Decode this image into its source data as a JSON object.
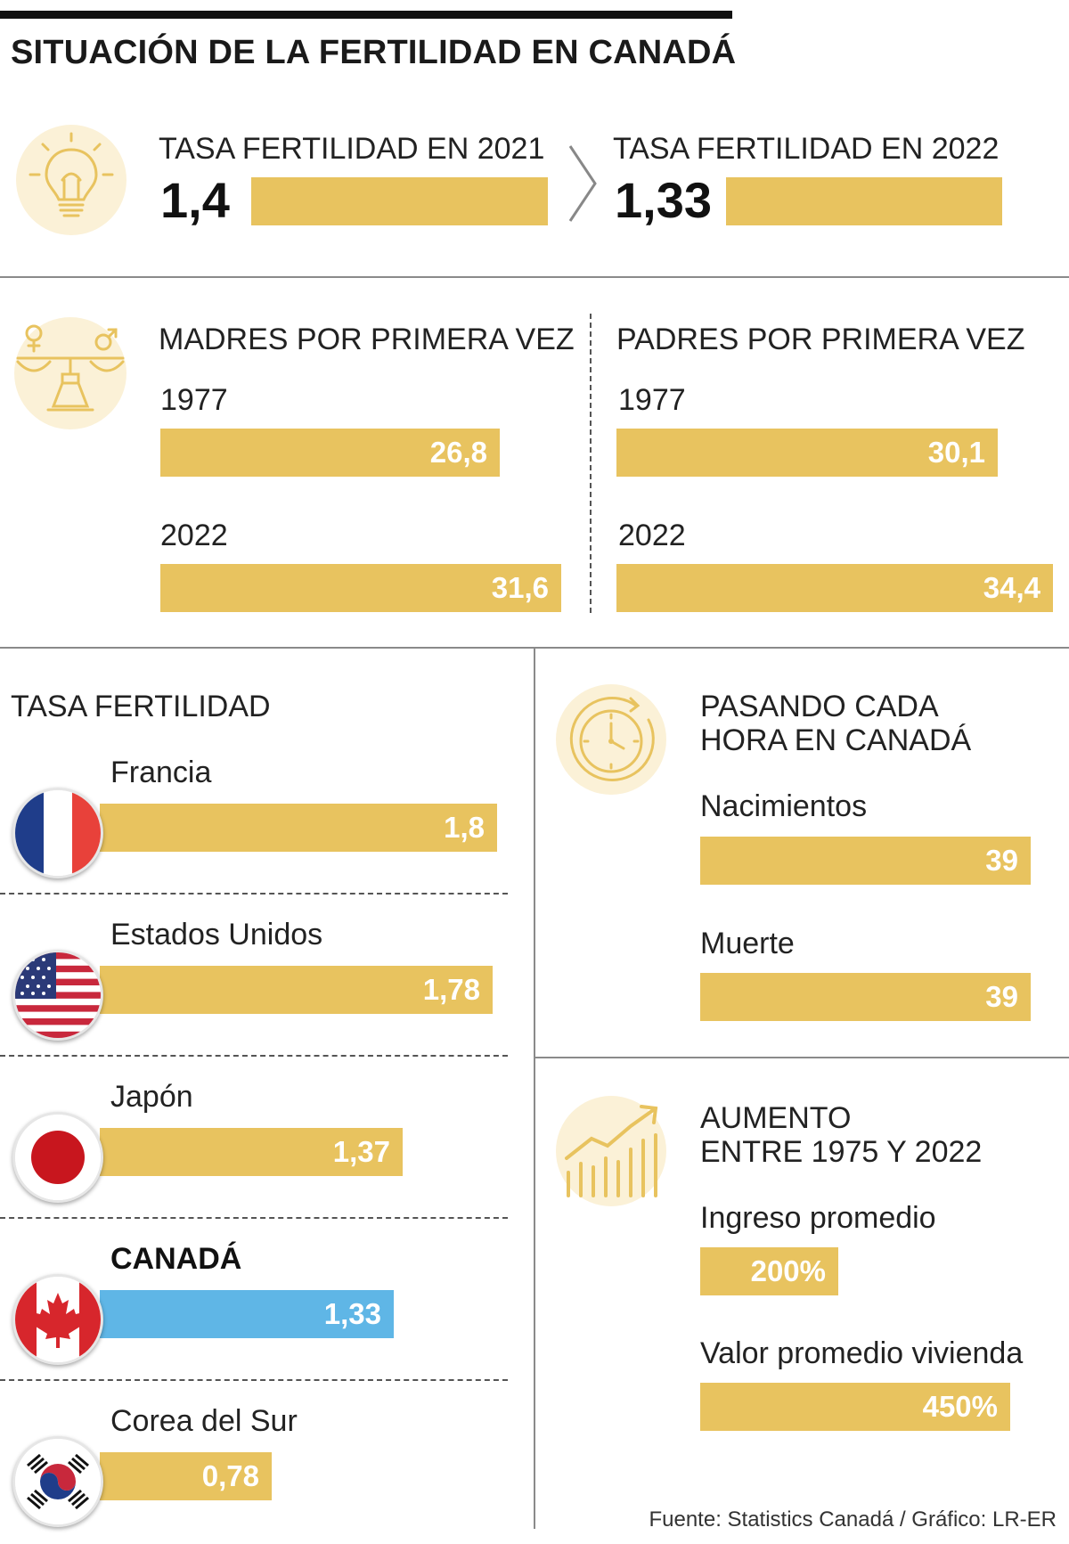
{
  "title": "SITUACIÓN DE LA FERTILIDAD EN CANADÁ",
  "colors": {
    "gold": "#e8c35f",
    "canada_blue": "#5fb6e6",
    "icon_bg": "#fbf1d7"
  },
  "icons": {
    "rate": "lightbulb-icon",
    "parents": "gender-scale-icon",
    "hour": "clock-icon",
    "increase": "growth-chart-icon",
    "arrow": "chevron-right-icon"
  },
  "chart_data": [
    {
      "type": "bar",
      "categories": [
        "TASA FERTILIDAD EN 2021",
        "TASA FERTILIDAD EN 2022"
      ],
      "values": [
        1.4,
        1.33
      ],
      "value_labels": [
        "1,4",
        "1,33"
      ]
    },
    {
      "type": "bar",
      "title": "MADRES POR PRIMERA VEZ",
      "categories": [
        "1977",
        "2022"
      ],
      "values": [
        26.8,
        31.6
      ],
      "value_labels": [
        "26,8",
        "31,6"
      ]
    },
    {
      "type": "bar",
      "title": "PADRES POR PRIMERA VEZ",
      "categories": [
        "1977",
        "2022"
      ],
      "values": [
        30.1,
        34.4
      ],
      "value_labels": [
        "30,1",
        "34,4"
      ]
    },
    {
      "type": "bar",
      "title": "TASA FERTILIDAD",
      "categories": [
        "Francia",
        "Estados Unidos",
        "Japón",
        "CANADÁ",
        "Corea del Sur"
      ],
      "values": [
        1.8,
        1.78,
        1.37,
        1.33,
        0.78
      ],
      "value_labels": [
        "1,8",
        "1,78",
        "1,37",
        "1,33",
        "0,78"
      ],
      "highlight": "CANADÁ"
    },
    {
      "type": "bar",
      "title": "PASANDO CADA HORA EN CANADÁ",
      "title_lines": [
        "PASANDO CADA",
        "HORA EN CANADÁ"
      ],
      "categories": [
        "Nacimientos",
        "Muerte"
      ],
      "values": [
        39,
        39
      ],
      "value_labels": [
        "39",
        "39"
      ]
    },
    {
      "type": "bar",
      "title": "AUMENTO ENTRE 1975 Y 2022",
      "title_lines": [
        "AUMENTO",
        "ENTRE 1975 Y 2022"
      ],
      "categories": [
        "Ingreso promedio",
        "Valor promedio vivienda"
      ],
      "values": [
        200,
        450
      ],
      "value_labels": [
        "200%",
        "450%"
      ]
    }
  ],
  "source": "Fuente: Statistics Canadá / Gráfico: LR-ER"
}
